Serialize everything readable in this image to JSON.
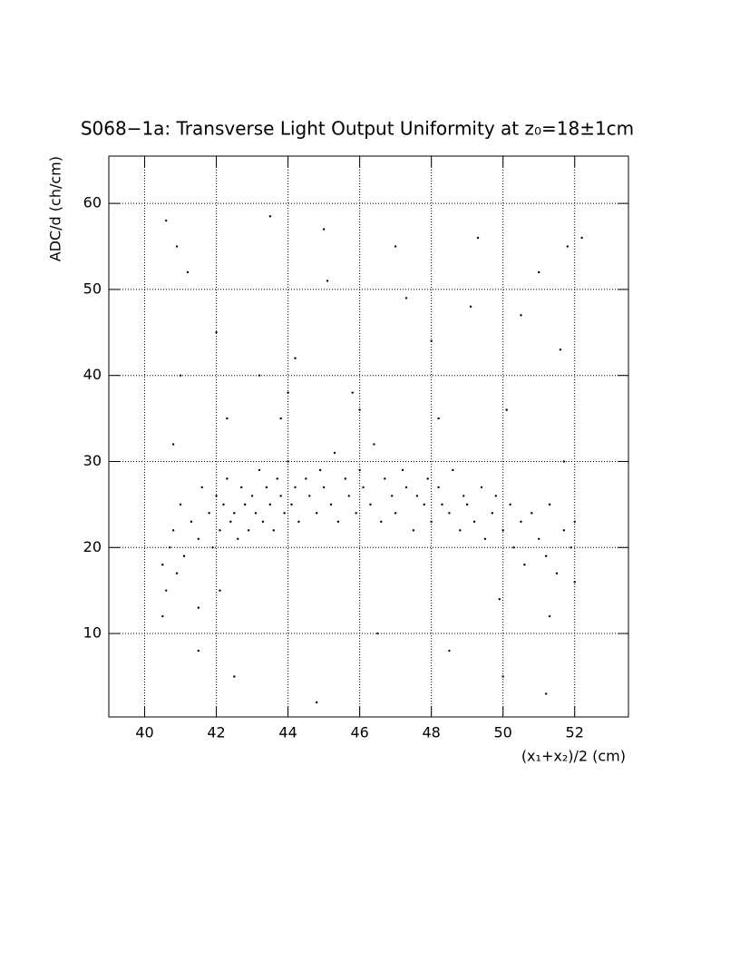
{
  "chart_data": {
    "type": "scatter",
    "title": "S068−1a: Transverse Light Output Uniformity at z₀=18±1cm",
    "x_label": "(x₁+x₂)/2 (cm)",
    "y_label": "ADC/d (ch/cm)",
    "color": "#000000",
    "grid": true,
    "xlim": [
      39,
      53.5
    ],
    "ylim": [
      0.3,
      65.5
    ],
    "xticks": [
      40,
      42,
      44,
      46,
      48,
      50,
      52
    ],
    "yticks": [
      10,
      20,
      30,
      40,
      50,
      60
    ],
    "x": [
      40.5,
      40.6,
      40.7,
      40.5,
      40.8,
      40.9,
      41.0,
      41.1,
      41.3,
      41.5,
      41.6,
      41.8,
      41.9,
      42.0,
      42.1,
      42.2,
      42.3,
      42.4,
      42.5,
      42.6,
      42.7,
      42.8,
      42.9,
      43.0,
      43.1,
      43.2,
      43.3,
      43.4,
      43.5,
      43.6,
      43.7,
      43.8,
      43.9,
      44.0,
      44.1,
      44.2,
      44.3,
      44.5,
      44.6,
      44.8,
      44.9,
      45.0,
      45.2,
      45.3,
      45.4,
      45.6,
      45.7,
      45.9,
      46.0,
      46.1,
      46.3,
      46.4,
      46.6,
      46.7,
      46.9,
      47.0,
      47.2,
      47.3,
      47.5,
      47.6,
      47.8,
      47.9,
      48.0,
      48.2,
      48.3,
      48.5,
      48.6,
      48.8,
      48.9,
      49.0,
      49.2,
      49.4,
      49.5,
      49.7,
      49.8,
      50.0,
      50.2,
      50.3,
      50.5,
      50.6,
      50.8,
      51.0,
      51.2,
      51.3,
      51.5,
      51.7,
      51.9,
      52.0,
      52.0,
      40.6,
      40.9,
      41.2,
      41.5,
      42.0,
      42.5,
      43.2,
      43.5,
      43.8,
      44.2,
      44.8,
      45.1,
      45.0,
      45.8,
      46.5,
      47.0,
      47.3,
      48.0,
      48.5,
      49.1,
      49.3,
      50.0,
      50.5,
      51.0,
      51.2,
      51.6,
      51.8,
      52.2,
      41.0,
      40.8,
      42.3,
      44.0,
      46.0,
      48.2,
      50.1,
      51.7,
      41.5,
      42.1,
      49.9,
      51.3
    ],
    "values": [
      18,
      15,
      20,
      12,
      22,
      17,
      25,
      19,
      23,
      21,
      27,
      24,
      20,
      26,
      22,
      25,
      28,
      23,
      24,
      21,
      27,
      25,
      22,
      26,
      24,
      29,
      23,
      27,
      25,
      22,
      28,
      26,
      24,
      30,
      25,
      27,
      23,
      28,
      26,
      24,
      29,
      27,
      25,
      31,
      23,
      28,
      26,
      24,
      29,
      27,
      25,
      32,
      23,
      28,
      26,
      24,
      29,
      27,
      22,
      26,
      25,
      28,
      23,
      27,
      25,
      24,
      29,
      22,
      26,
      25,
      23,
      27,
      21,
      24,
      26,
      22,
      25,
      20,
      23,
      18,
      24,
      21,
      19,
      25,
      17,
      22,
      20,
      23,
      16,
      58,
      55,
      52,
      8,
      45,
      5,
      40,
      58.5,
      35,
      42,
      2,
      51,
      57,
      38,
      10,
      55,
      49,
      44,
      8,
      48,
      56,
      5,
      47,
      52,
      3,
      43,
      55,
      56,
      40,
      32,
      35,
      38,
      36,
      35,
      36,
      30,
      13,
      15,
      14,
      12
    ]
  }
}
